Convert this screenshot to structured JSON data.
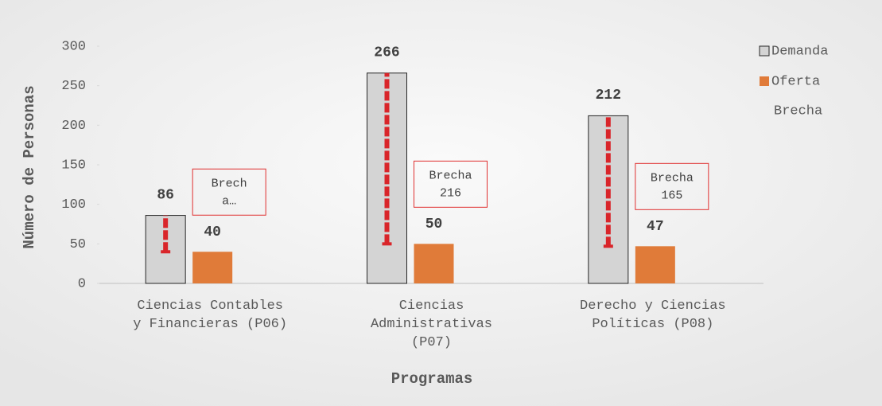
{
  "chart_data": {
    "type": "bar",
    "categories": [
      "Ciencias Contables\ny Financieras (P06)",
      "Ciencias\nAdministrativas\n(P07)",
      "Derecho y Ciencias\nPolíticas (P08)"
    ],
    "series": [
      {
        "name": "Demanda",
        "color": "#d4d4d4",
        "values": [
          86,
          266,
          212
        ]
      },
      {
        "name": "Oferta",
        "color": "#e07b39",
        "values": [
          40,
          50,
          47
        ]
      },
      {
        "name": "Brecha",
        "color": "#d9252a",
        "values": [
          46,
          216,
          165
        ],
        "value_labels": [
          "Brech\na…",
          "Brecha\n216",
          "Brecha\n165"
        ]
      }
    ],
    "ylim": [
      0,
      300
    ],
    "yticks": [
      0,
      50,
      100,
      150,
      200,
      250,
      300
    ],
    "y_label": "Número de Personas",
    "x_label": "Programas",
    "legend": "right"
  }
}
